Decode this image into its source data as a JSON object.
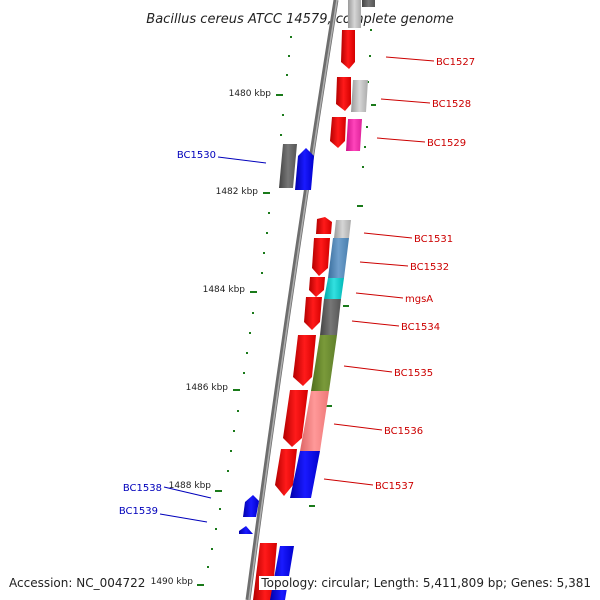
{
  "title": "Bacillus cereus ATCC 14579, complete genome",
  "footer": {
    "accession": "Accession: NC_004722",
    "topology": "Topology: circular; Length: 5,411,809 bp; Genes: 5,381"
  },
  "kbp_labels": [
    "1480 kbp",
    "1482 kbp",
    "1484 kbp",
    "1486 kbp",
    "1488 kbp",
    "1490 kbp"
  ],
  "gene_labels": {
    "forward": [
      "BC1527",
      "BC1528",
      "BC1529",
      "BC1531",
      "BC1532",
      "mgsA",
      "BC1534",
      "BC1535",
      "BC1536",
      "BC1537"
    ],
    "reverse": [
      "BC1530",
      "BC1538",
      "BC1539"
    ]
  },
  "colors": {
    "forward_label": "#cc0000",
    "reverse_label": "#0000bb",
    "tick": "#1a7a1a",
    "backbone": "#808080"
  }
}
